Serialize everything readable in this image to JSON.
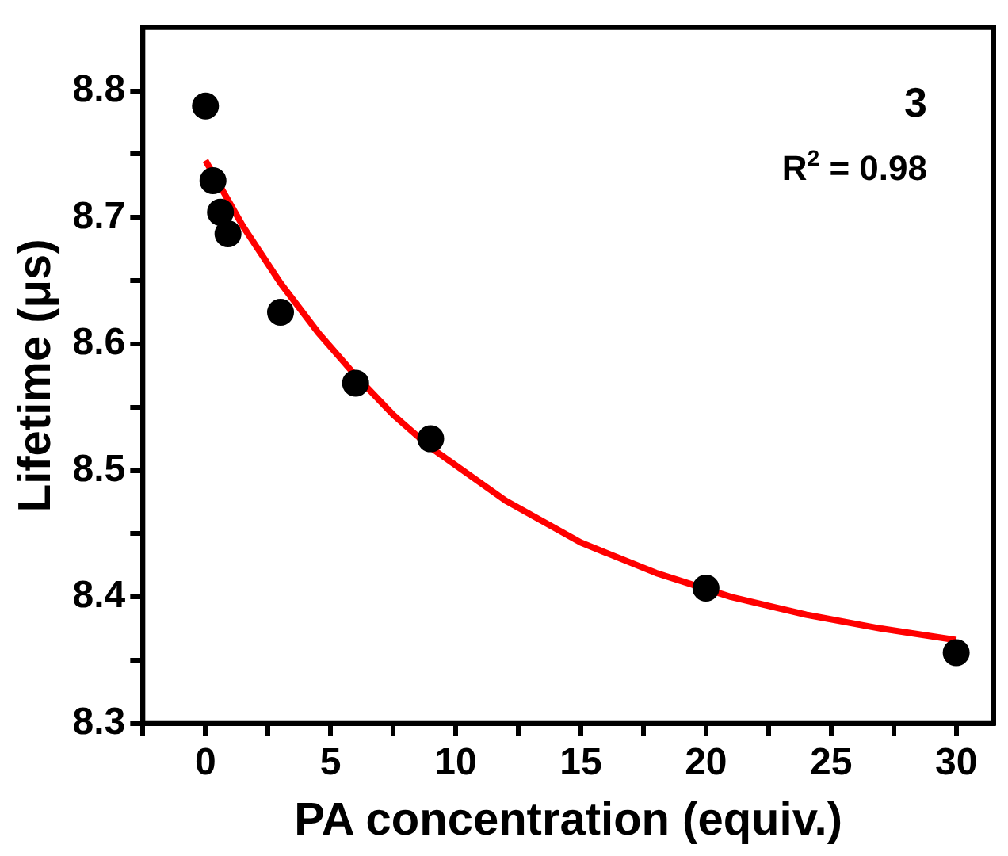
{
  "chart_data": {
    "type": "scatter",
    "xlabel": "PA concentration (equiv.)",
    "ylabel": "Lifetime (μs)",
    "xlim": [
      -2.5,
      31.5
    ],
    "ylim": [
      8.3,
      8.85
    ],
    "xticks": [
      {
        "value": -2.5,
        "label": null
      },
      0,
      {
        "value": 2.5,
        "label": null
      },
      5,
      {
        "value": 7.5,
        "label": null
      },
      10,
      {
        "value": 12.5,
        "label": null
      },
      15,
      {
        "value": 17.5,
        "label": null
      },
      20,
      {
        "value": 22.5,
        "label": null
      },
      25,
      {
        "value": 27.5,
        "label": null
      },
      30
    ],
    "yticks": [
      8.3,
      {
        "value": 8.35,
        "label": null
      },
      8.4,
      {
        "value": 8.45,
        "label": null
      },
      8.5,
      {
        "value": 8.55,
        "label": null
      },
      8.6,
      {
        "value": 8.65,
        "label": null
      },
      8.7,
      {
        "value": 8.75,
        "label": null
      },
      8.8
    ],
    "grid": false,
    "legend": false,
    "marker": "circle",
    "annotations": [
      "3",
      "R$^{2}$ = 0.98"
    ],
    "series": [
      {
        "type": "scatter",
        "color": "#000000",
        "x": [
          0,
          0.3,
          0.6,
          0.9,
          3,
          6,
          9,
          20,
          30
        ],
        "values": [
          8.788,
          8.729,
          8.704,
          8.687,
          8.625,
          8.569,
          8.525,
          8.407,
          8.356
        ]
      },
      {
        "type": "line",
        "color": "#ff0000",
        "marker": "none",
        "line_style": "solid",
        "x": [
          0,
          1.5,
          3,
          4.5,
          6,
          7.5,
          9,
          12,
          15,
          18,
          21,
          24,
          27,
          30
        ],
        "values": [
          8.745,
          8.693,
          8.648,
          8.609,
          8.575,
          8.544,
          8.518,
          8.476,
          8.443,
          8.419,
          8.4,
          8.386,
          8.375,
          8.366
        ]
      }
    ]
  }
}
